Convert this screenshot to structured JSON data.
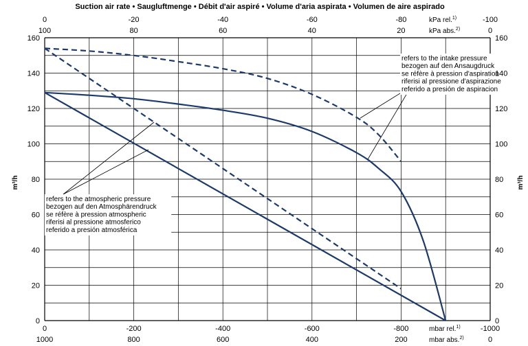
{
  "chart_data": {
    "type": "line",
    "title": "Suction air rate  •  Saugluftmenge  •  Débit d'air aspiré  •  Volume d'aria aspirata  •  Volumen de aire aspirado",
    "ylabel": "m³/h",
    "ylim": [
      0,
      160
    ],
    "y_ticks": [
      "0",
      "20",
      "40",
      "60",
      "80",
      "100",
      "120",
      "140",
      "160"
    ],
    "x_bottom": {
      "range": [
        0,
        -1000
      ],
      "rel_ticks": [
        "0",
        "-200",
        "-400",
        "-600",
        "-800",
        "-1000"
      ],
      "abs_ticks": [
        "1000",
        "800",
        "600",
        "400",
        "200",
        "0"
      ],
      "rel_unit": "mbar rel.",
      "abs_unit": "mbar abs.",
      "rel_sup": "1)",
      "abs_sup": "2)"
    },
    "x_top": {
      "rel_ticks": [
        "0",
        "-20",
        "-40",
        "-60",
        "-80",
        "-100"
      ],
      "abs_ticks": [
        "100",
        "80",
        "60",
        "40",
        "20",
        "0"
      ],
      "rel_unit": "kPa rel.",
      "abs_unit": "kPa abs.",
      "rel_sup": "1)",
      "abs_sup": "2)"
    },
    "series": [
      {
        "name": "solid curve (intake pressure)",
        "style": "solid",
        "x": [
          0,
          -100,
          -200,
          -300,
          -400,
          -500,
          -600,
          -700,
          -750,
          -800,
          -850,
          -900
        ],
        "y": [
          129,
          127.5,
          125.5,
          122.5,
          119,
          114.5,
          107,
          95,
          86,
          73,
          45,
          0
        ]
      },
      {
        "name": "solid line (atmospheric pressure)",
        "style": "solid",
        "x": [
          0,
          -900
        ],
        "y": [
          129,
          0
        ]
      },
      {
        "name": "dashed curve (intake pressure)",
        "style": "dashed",
        "x": [
          0,
          -100,
          -200,
          -300,
          -400,
          -500,
          -600,
          -700,
          -750,
          -800
        ],
        "y": [
          154,
          152.5,
          150,
          146.5,
          142.5,
          137,
          128,
          115,
          105,
          90
        ]
      },
      {
        "name": "dashed line (atmospheric pressure)",
        "style": "dashed",
        "x": [
          0,
          -800
        ],
        "y": [
          154,
          18
        ]
      }
    ],
    "annotations": [
      {
        "name": "intake-pressure-note",
        "lines": [
          "refers to the intake pressure",
          "bezogen auf den Ansaugdruck",
          "se réfère à pression d'aspiration",
          "riferisi al pressione d'aspirazione",
          "referido a presión de aspiracion"
        ]
      },
      {
        "name": "atmospheric-pressure-note",
        "lines": [
          "refers to the atmospheric pressure",
          "bezogen auf den Atmosphärendruck",
          "se réfère à pression atmospheric",
          "riferisi al pressione atmosferico",
          "referido a presión atmosférica"
        ]
      }
    ],
    "colors": {
      "curve": "#1b3a6b",
      "grid": "#000000"
    }
  }
}
